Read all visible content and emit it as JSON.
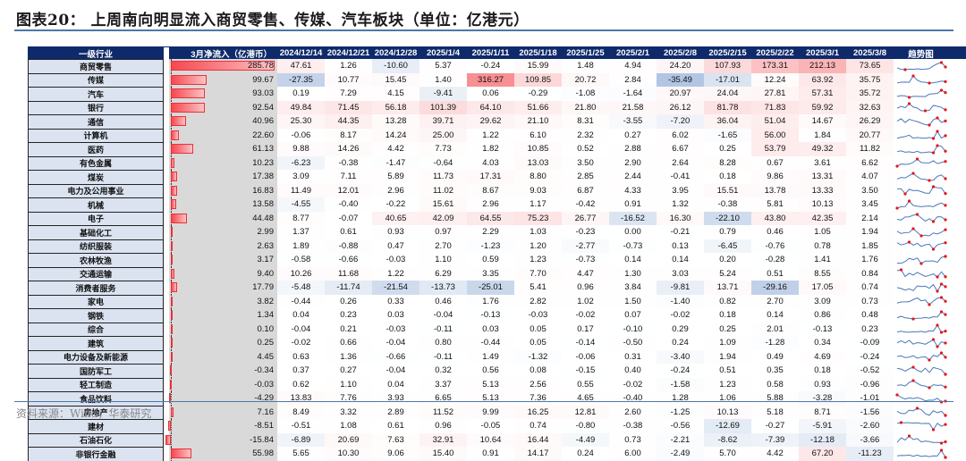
{
  "title": "图表20：  上周南向明显流入商贸零售、传媒、汽车板块（单位：亿港元）",
  "footer": "资料来源：Wind，华泰研究",
  "colors": {
    "header_bg": "#0e2a6b",
    "label_bg": "#dbe3f1",
    "bar_gradient_start": "#f7474f",
    "bar_gradient_end": "#fbc2c4",
    "positive_heat": "#f4686d",
    "negative_heat": "#7d9fcf",
    "spark_line": "#4a78b8",
    "spark_dot": "#e8141a"
  },
  "table": {
    "headers": {
      "industry": "一级行业",
      "march_inflow": "3月净流入（亿港币）",
      "dates": [
        "2024/12/14",
        "2024/12/21",
        "2024/12/28",
        "2025/1/4",
        "2025/1/11",
        "2025/1/18",
        "2025/1/25",
        "2025/2/1",
        "2025/2/8",
        "2025/2/15",
        "2025/2/22",
        "2025/3/1",
        "2025/3/8"
      ],
      "trend": "趋势图"
    },
    "rows": [
      {
        "name": "商贸零售",
        "march": "285.78",
        "vals": [
          "47.61",
          "1.26",
          "-10.60",
          "5.37",
          "-0.24",
          "15.99",
          "1.48",
          "4.94",
          "24.20",
          "107.93",
          "173.31",
          "212.13",
          "73.65"
        ]
      },
      {
        "name": "传媒",
        "march": "99.67",
        "vals": [
          "-27.35",
          "10.77",
          "15.45",
          "1.40",
          "316.27",
          "109.85",
          "20.72",
          "2.84",
          "-35.49",
          "-17.01",
          "12.24",
          "63.92",
          "35.75"
        ]
      },
      {
        "name": "汽车",
        "march": "93.03",
        "vals": [
          "0.19",
          "7.29",
          "4.15",
          "-9.41",
          "0.06",
          "-0.29",
          "-1.08",
          "-1.64",
          "20.97",
          "24.04",
          "27.81",
          "57.31",
          "35.72"
        ]
      },
      {
        "name": "银行",
        "march": "92.54",
        "vals": [
          "49.84",
          "71.45",
          "56.18",
          "101.39",
          "64.10",
          "51.66",
          "21.80",
          "21.58",
          "26.12",
          "81.78",
          "71.83",
          "59.92",
          "32.63"
        ]
      },
      {
        "name": "通信",
        "march": "40.96",
        "vals": [
          "25.30",
          "44.35",
          "13.28",
          "39.71",
          "29.62",
          "21.10",
          "8.31",
          "-3.55",
          "-7.20",
          "36.04",
          "51.04",
          "14.67",
          "26.29"
        ]
      },
      {
        "name": "计算机",
        "march": "22.60",
        "vals": [
          "-0.06",
          "8.17",
          "14.24",
          "25.00",
          "1.22",
          "6.10",
          "2.32",
          "0.27",
          "6.02",
          "-1.65",
          "56.00",
          "1.84",
          "20.77"
        ]
      },
      {
        "name": "医药",
        "march": "61.13",
        "vals": [
          "9.88",
          "14.26",
          "4.42",
          "7.73",
          "1.82",
          "10.85",
          "0.52",
          "2.88",
          "6.67",
          "0.25",
          "53.79",
          "49.32",
          "11.82"
        ]
      },
      {
        "name": "有色金属",
        "march": "10.23",
        "vals": [
          "-6.23",
          "-0.38",
          "-1.47",
          "-0.64",
          "4.03",
          "13.03",
          "3.50",
          "2.90",
          "2.64",
          "8.28",
          "0.67",
          "3.61",
          "6.62"
        ]
      },
      {
        "name": "煤炭",
        "march": "17.38",
        "vals": [
          "3.09",
          "7.11",
          "5.89",
          "11.73",
          "17.31",
          "8.80",
          "2.85",
          "2.44",
          "-0.41",
          "0.18",
          "9.86",
          "13.31",
          "4.07"
        ]
      },
      {
        "name": "电力及公用事业",
        "march": "16.83",
        "vals": [
          "11.49",
          "12.01",
          "2.96",
          "11.02",
          "8.67",
          "9.03",
          "6.87",
          "4.33",
          "3.95",
          "15.51",
          "13.78",
          "13.33",
          "3.50"
        ]
      },
      {
        "name": "机械",
        "march": "13.58",
        "vals": [
          "-4.55",
          "-0.40",
          "-0.22",
          "15.61",
          "2.96",
          "1.17",
          "-0.42",
          "0.91",
          "1.32",
          "-0.38",
          "5.81",
          "10.13",
          "3.45"
        ]
      },
      {
        "name": "电子",
        "march": "44.48",
        "vals": [
          "8.77",
          "-0.07",
          "40.65",
          "42.09",
          "64.55",
          "75.23",
          "26.77",
          "-16.52",
          "16.30",
          "-22.10",
          "43.80",
          "42.35",
          "2.14"
        ]
      },
      {
        "name": "基础化工",
        "march": "2.99",
        "vals": [
          "1.37",
          "0.61",
          "0.93",
          "0.97",
          "2.29",
          "1.03",
          "-0.23",
          "0.00",
          "-0.21",
          "0.79",
          "0.46",
          "1.05",
          "1.94"
        ]
      },
      {
        "name": "纺织服装",
        "march": "2.63",
        "vals": [
          "1.89",
          "-0.88",
          "0.47",
          "2.70",
          "-1.23",
          "1.20",
          "-2.77",
          "-0.73",
          "0.13",
          "-6.45",
          "-0.76",
          "0.78",
          "1.85"
        ]
      },
      {
        "name": "农林牧渔",
        "march": "3.17",
        "vals": [
          "-0.58",
          "-0.66",
          "-0.03",
          "1.10",
          "0.59",
          "1.23",
          "-0.73",
          "0.14",
          "0.14",
          "0.20",
          "-0.28",
          "1.41",
          "1.76"
        ]
      },
      {
        "name": "交通运输",
        "march": "9.40",
        "vals": [
          "10.26",
          "11.68",
          "1.22",
          "6.29",
          "3.35",
          "7.70",
          "4.47",
          "1.30",
          "3.03",
          "5.24",
          "0.51",
          "8.55",
          "0.84"
        ]
      },
      {
        "name": "消费者服务",
        "march": "17.79",
        "vals": [
          "-5.48",
          "-11.74",
          "-21.54",
          "-13.73",
          "-25.01",
          "5.41",
          "0.96",
          "3.84",
          "-9.81",
          "13.71",
          "-29.16",
          "17.05",
          "0.74"
        ]
      },
      {
        "name": "家电",
        "march": "3.82",
        "vals": [
          "-0.44",
          "0.26",
          "0.33",
          "0.46",
          "1.76",
          "2.82",
          "1.02",
          "1.50",
          "-1.40",
          "0.82",
          "2.70",
          "3.09",
          "0.73"
        ]
      },
      {
        "name": "钢铁",
        "march": "1.34",
        "vals": [
          "0.04",
          "0.23",
          "0.03",
          "-0.04",
          "-0.13",
          "-0.03",
          "-0.02",
          "0.07",
          "-0.02",
          "0.18",
          "0.14",
          "0.86",
          "0.48"
        ]
      },
      {
        "name": "综合",
        "march": "0.10",
        "vals": [
          "-0.04",
          "0.21",
          "-0.03",
          "-0.11",
          "0.03",
          "0.05",
          "0.17",
          "-0.10",
          "0.29",
          "0.25",
          "2.01",
          "-0.13",
          "0.23"
        ]
      },
      {
        "name": "建筑",
        "march": "0.25",
        "vals": [
          "-0.02",
          "0.66",
          "-0.04",
          "0.80",
          "-0.44",
          "0.05",
          "-0.14",
          "-0.50",
          "0.24",
          "1.09",
          "-1.28",
          "0.34",
          "-0.09"
        ]
      },
      {
        "name": "电力设备及新能源",
        "march": "4.45",
        "vals": [
          "0.63",
          "1.36",
          "-0.66",
          "-0.11",
          "1.49",
          "-1.32",
          "-0.06",
          "0.31",
          "-3.40",
          "1.94",
          "0.49",
          "4.69",
          "-0.24"
        ]
      },
      {
        "name": "国防军工",
        "march": "-0.34",
        "vals": [
          "0.37",
          "0.27",
          "-0.04",
          "0.32",
          "0.56",
          "0.08",
          "-0.15",
          "0.40",
          "-0.24",
          "0.51",
          "0.35",
          "0.18",
          "-0.52"
        ]
      },
      {
        "name": "轻工制造",
        "march": "-0.03",
        "vals": [
          "0.62",
          "1.10",
          "0.04",
          "3.37",
          "5.13",
          "2.56",
          "0.55",
          "-0.02",
          "-1.58",
          "1.23",
          "0.58",
          "0.93",
          "-0.96"
        ]
      },
      {
        "name": "食品饮料",
        "march": "-4.29",
        "vals": [
          "13.83",
          "7.76",
          "3.93",
          "6.65",
          "5.13",
          "7.36",
          "4.65",
          "-0.40",
          "1.28",
          "1.06",
          "5.88",
          "-3.28",
          "-1.01"
        ]
      },
      {
        "name": "房地产",
        "march": "7.16",
        "vals": [
          "8.49",
          "3.32",
          "2.89",
          "11.52",
          "9.99",
          "16.25",
          "12.81",
          "2.60",
          "-1.25",
          "10.13",
          "5.18",
          "8.71",
          "-1.56"
        ]
      },
      {
        "name": "建材",
        "march": "-8.51",
        "vals": [
          "-0.51",
          "1.08",
          "0.61",
          "0.96",
          "-0.05",
          "0.74",
          "-0.80",
          "-0.38",
          "-0.56",
          "-12.69",
          "-0.27",
          "-5.91",
          "-2.60"
        ]
      },
      {
        "name": "石油石化",
        "march": "-15.84",
        "vals": [
          "-6.89",
          "20.69",
          "7.63",
          "32.91",
          "10.64",
          "16.44",
          "-4.49",
          "0.73",
          "-2.21",
          "-8.62",
          "-7.39",
          "-12.18",
          "-3.66"
        ]
      },
      {
        "name": "非银行金融",
        "march": "55.98",
        "vals": [
          "5.65",
          "10.30",
          "9.06",
          "15.40",
          "0.91",
          "14.17",
          "0.24",
          "6.00",
          "-2.49",
          "5.70",
          "4.42",
          "67.20",
          "-11.23"
        ]
      }
    ]
  }
}
